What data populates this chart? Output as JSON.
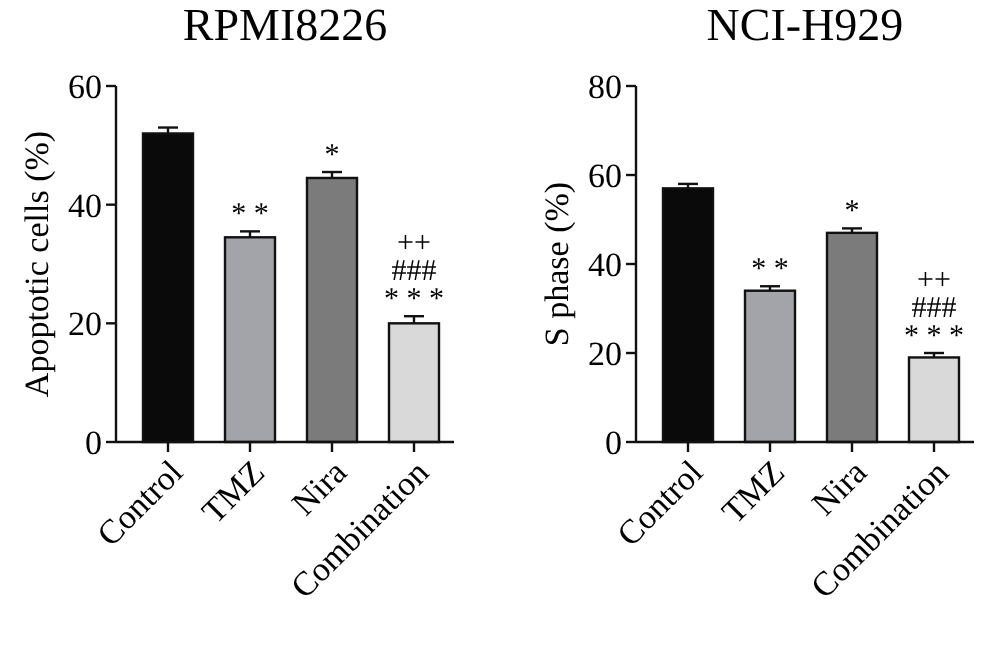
{
  "chart_data": [
    {
      "type": "bar",
      "title": "RPMI8226",
      "ylabel": "Apoptotic cells (%)",
      "categories": [
        "Control",
        "TMZ",
        "Nira",
        "Combination"
      ],
      "values": [
        52,
        34.5,
        44.5,
        20
      ],
      "errors": [
        1,
        1,
        1,
        1.2
      ],
      "colors": [
        "#0a0a0a",
        "#a3a3aa",
        "#7b7b7b",
        "#d9d9d9"
      ],
      "ylim": [
        0,
        60
      ],
      "yticks": [
        0,
        20,
        40,
        60
      ],
      "annotations": [
        {
          "text": "* *",
          "x": "TMZ",
          "y": 35.5
        },
        {
          "text": "*",
          "x": "Nira",
          "y": 45.5
        },
        {
          "text": "* * *",
          "x": "Combination",
          "y": 21.2
        },
        {
          "text": "###",
          "x": "Combination",
          "y": 21.2
        },
        {
          "text": "++",
          "x": "Combination",
          "y": 21.2
        }
      ]
    },
    {
      "type": "bar",
      "title": "NCI-H929",
      "ylabel": "S phase (%)",
      "categories": [
        "Control",
        "TMZ",
        "Nira",
        "Combination"
      ],
      "values": [
        57,
        34,
        47,
        19
      ],
      "errors": [
        1,
        1,
        1,
        1
      ],
      "colors": [
        "#0a0a0a",
        "#a3a3aa",
        "#7b7b7b",
        "#d9d9d9"
      ],
      "ylim": [
        0,
        80
      ],
      "yticks": [
        0,
        20,
        40,
        60,
        80
      ],
      "annotations": [
        {
          "text": "* *",
          "x": "TMZ",
          "y": 35
        },
        {
          "text": "*",
          "x": "Nira",
          "y": 48
        },
        {
          "text": "* * *",
          "x": "Combination",
          "y": 20
        },
        {
          "text": "###",
          "x": "Combination",
          "y": 20
        },
        {
          "text": "++",
          "x": "Combination",
          "y": 20
        }
      ]
    }
  ]
}
